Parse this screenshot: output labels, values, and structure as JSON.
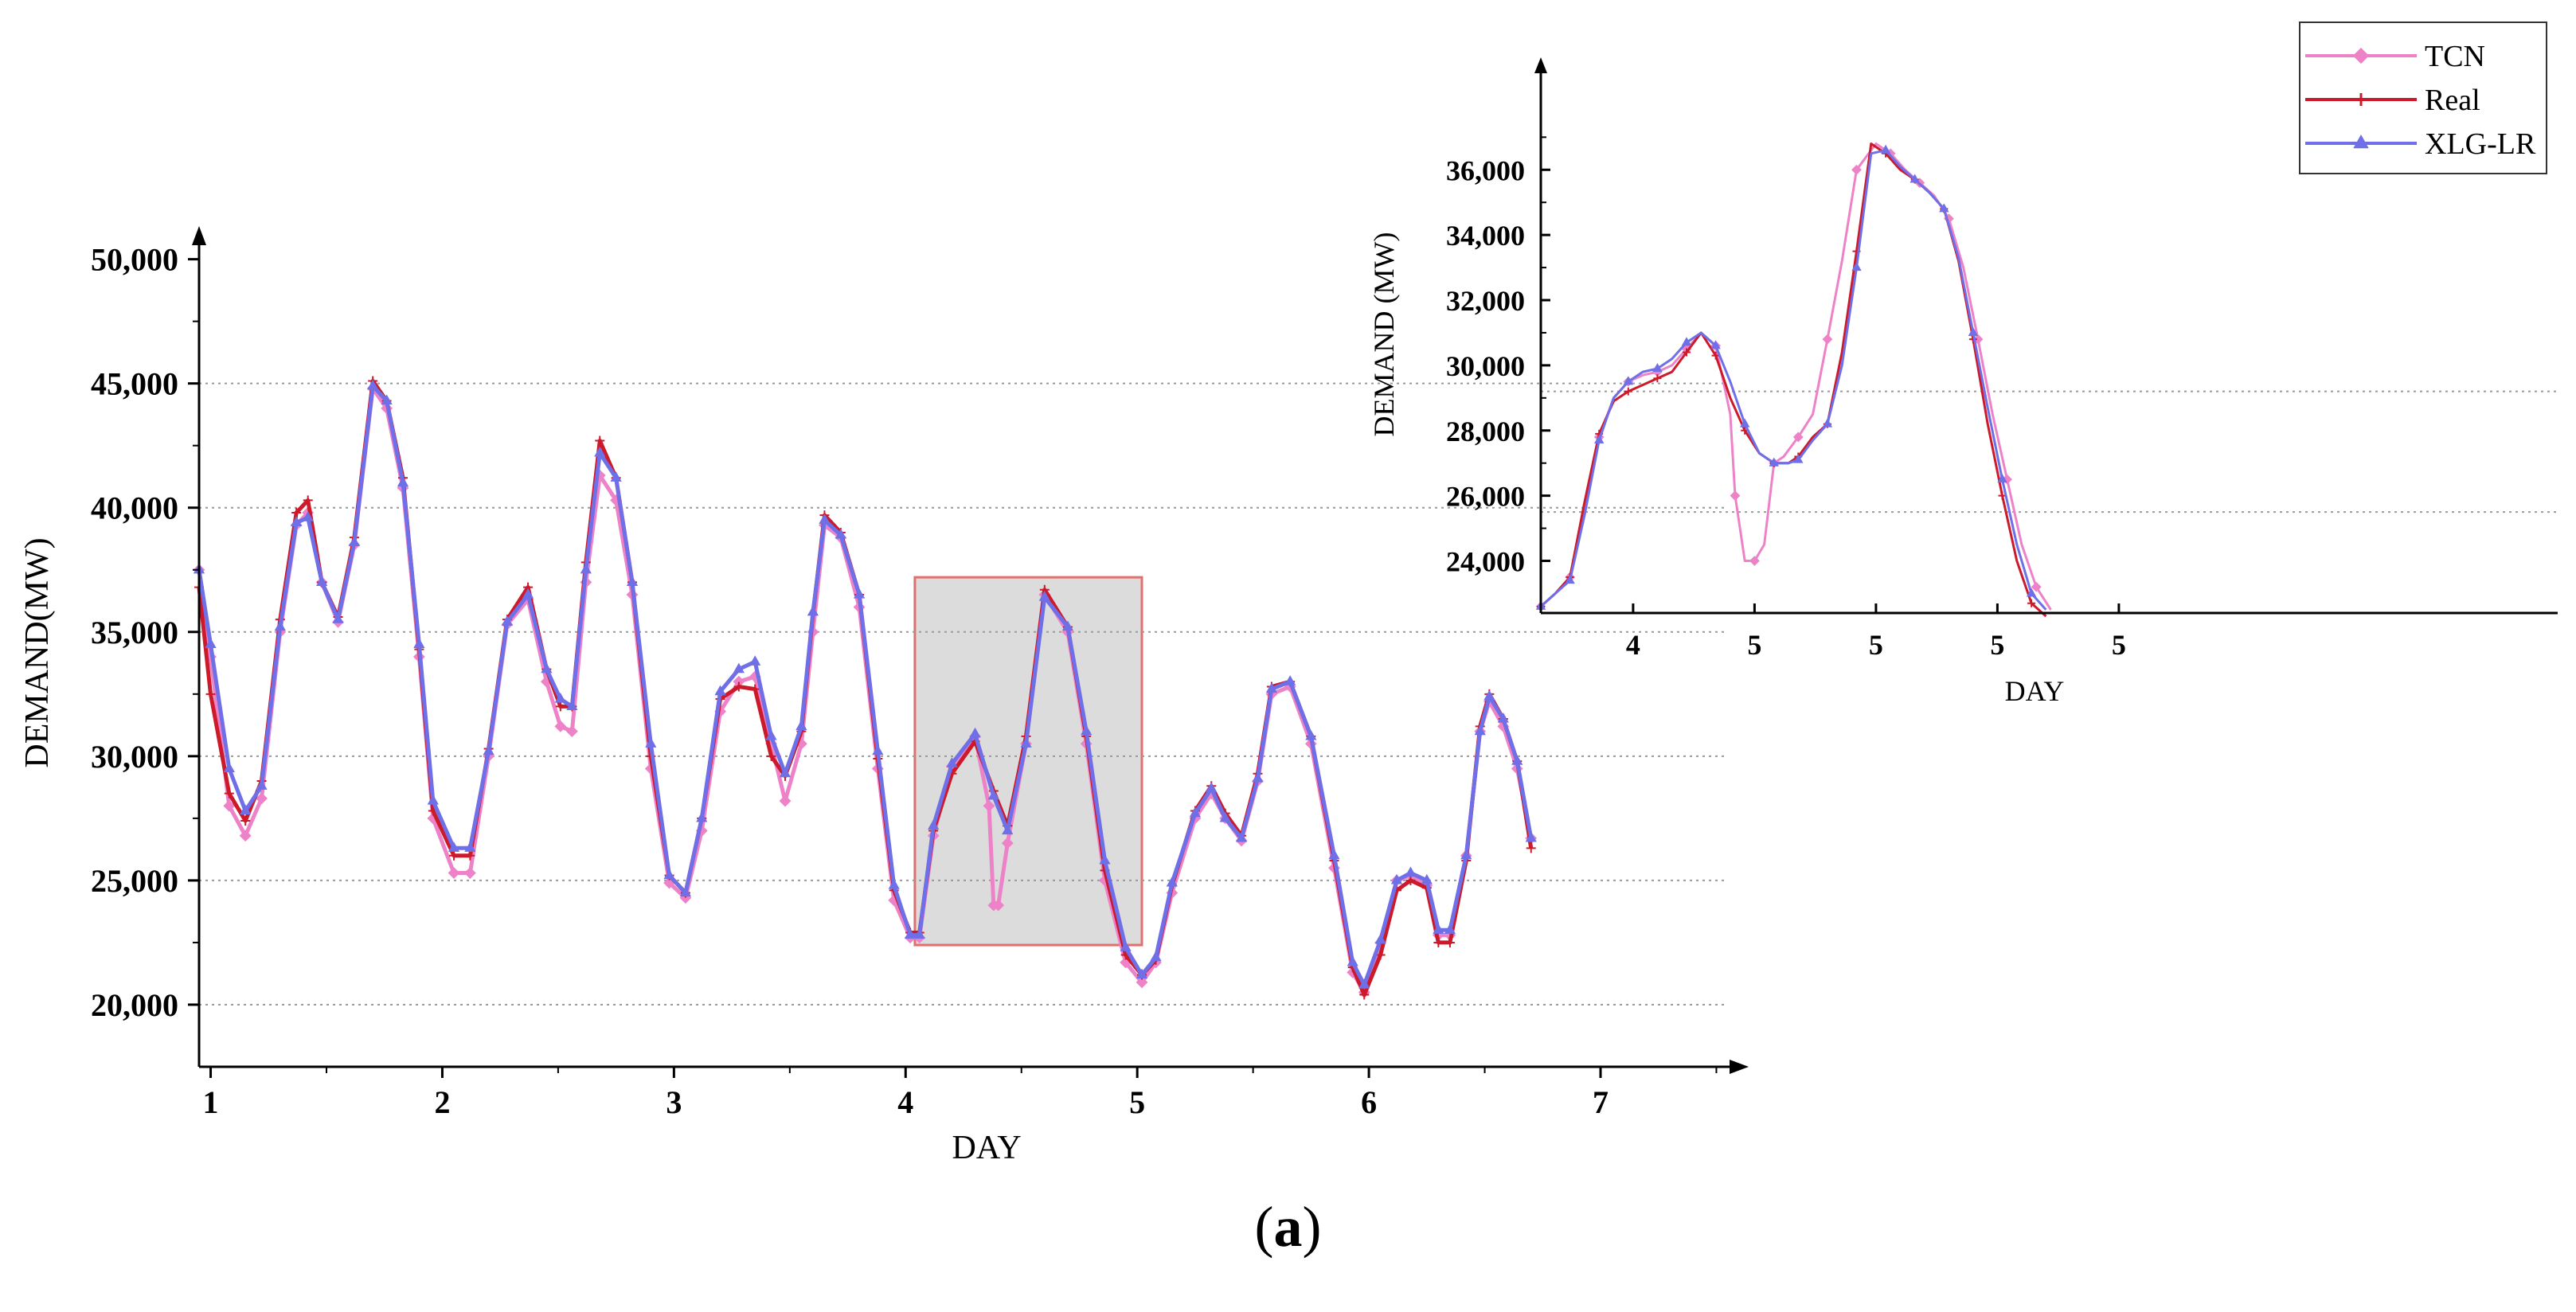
{
  "caption": {
    "open": "(",
    "letter": "a",
    "close": ")"
  },
  "colors": {
    "tcn": "#ee82c8",
    "real": "#cc1a2a",
    "xlg": "#6f6fe8",
    "grid": "#9a9a9a",
    "highlight": "#dcdcdc",
    "highlight_border": "#e07070"
  },
  "chart_data": [
    {
      "type": "line",
      "id": "main",
      "title": "",
      "xlabel": "DAY",
      "ylabel": "DEMAND(MW)",
      "xlim": [
        0.95,
        7.55
      ],
      "ylim": [
        17500,
        50500
      ],
      "x_ticks": [
        1,
        2,
        3,
        4,
        5,
        6,
        7
      ],
      "x_tick_labels": [
        "1",
        "2",
        "3",
        "4",
        "5",
        "6",
        "7"
      ],
      "y_ticks": [
        20000,
        25000,
        30000,
        35000,
        40000,
        45000,
        50000
      ],
      "y_tick_labels": [
        "20,000",
        "25,000",
        "30,000",
        "35,000",
        "40,000",
        "45,000",
        "50,000"
      ],
      "grid_y": [
        20000,
        25000,
        30000,
        35000,
        40000,
        45000
      ],
      "highlight_box": {
        "x": [
          4.04,
          5.02
        ],
        "y": [
          22400,
          37200
        ]
      },
      "series": [
        {
          "name": "TCN",
          "key": "tcn",
          "x": [
            0.95,
            1.0,
            1.08,
            1.15,
            1.22,
            1.3,
            1.37,
            1.42,
            1.48,
            1.55,
            1.62,
            1.7,
            1.76,
            1.83,
            1.9,
            1.96,
            2.05,
            2.12,
            2.2,
            2.28,
            2.37,
            2.45,
            2.51,
            2.56,
            2.62,
            2.68,
            2.75,
            2.82,
            2.9,
            2.98,
            3.05,
            3.12,
            3.2,
            3.28,
            3.35,
            3.42,
            3.48,
            3.55,
            3.6,
            3.65,
            3.72,
            3.8,
            3.88,
            3.95,
            4.02,
            4.06,
            4.12,
            4.2,
            4.3,
            4.36,
            4.38,
            4.4,
            4.44,
            4.52,
            4.6,
            4.7,
            4.78,
            4.86,
            4.95,
            5.02,
            5.08,
            5.15,
            5.25,
            5.32,
            5.38,
            5.45,
            5.52,
            5.58,
            5.66,
            5.75,
            5.85,
            5.93,
            5.98,
            6.05,
            6.12,
            6.18,
            6.25,
            6.3,
            6.35,
            6.42,
            6.48,
            6.52,
            6.58,
            6.64,
            6.7
          ],
          "y": [
            37500,
            34000,
            28000,
            26800,
            28300,
            35000,
            39300,
            39800,
            37000,
            35400,
            38500,
            44800,
            44000,
            40800,
            34000,
            27500,
            25300,
            25300,
            30000,
            35300,
            36300,
            33000,
            31200,
            31000,
            37000,
            41300,
            40300,
            36500,
            29500,
            24900,
            24300,
            27000,
            31800,
            33000,
            33200,
            30500,
            28200,
            30500,
            35000,
            39300,
            38800,
            36000,
            29500,
            24200,
            22700,
            22700,
            26800,
            29600,
            30800,
            28000,
            24000,
            24000,
            26500,
            30500,
            36500,
            35000,
            30500,
            25000,
            21700,
            20900,
            21700,
            24500,
            27500,
            28500,
            27500,
            26600,
            29000,
            32500,
            32800,
            30500,
            25500,
            21300,
            20500,
            22500,
            25000,
            25200,
            24800,
            22800,
            22800,
            26000,
            31000,
            32200,
            31200,
            29500,
            26700
          ]
        },
        {
          "name": "Real",
          "key": "real",
          "x": [
            0.95,
            1.0,
            1.08,
            1.15,
            1.22,
            1.3,
            1.37,
            1.42,
            1.48,
            1.55,
            1.62,
            1.7,
            1.76,
            1.83,
            1.9,
            1.96,
            2.05,
            2.12,
            2.2,
            2.28,
            2.37,
            2.45,
            2.51,
            2.56,
            2.62,
            2.68,
            2.75,
            2.82,
            2.9,
            2.98,
            3.05,
            3.12,
            3.2,
            3.28,
            3.35,
            3.42,
            3.48,
            3.55,
            3.6,
            3.65,
            3.72,
            3.8,
            3.88,
            3.95,
            4.02,
            4.06,
            4.12,
            4.2,
            4.3,
            4.38,
            4.44,
            4.52,
            4.6,
            4.7,
            4.78,
            4.86,
            4.95,
            5.02,
            5.08,
            5.15,
            5.25,
            5.32,
            5.38,
            5.45,
            5.52,
            5.58,
            5.66,
            5.75,
            5.85,
            5.93,
            5.98,
            6.05,
            6.12,
            6.18,
            6.25,
            6.3,
            6.35,
            6.42,
            6.48,
            6.52,
            6.58,
            6.64,
            6.7
          ],
          "y": [
            36800,
            32500,
            28500,
            27400,
            29000,
            35500,
            39800,
            40300,
            37000,
            35600,
            38800,
            45100,
            44300,
            41200,
            34300,
            27800,
            26000,
            26000,
            30300,
            35500,
            36800,
            33500,
            32000,
            32000,
            37800,
            42700,
            41200,
            37000,
            30000,
            25200,
            24500,
            27500,
            32300,
            32800,
            32700,
            30000,
            29200,
            31000,
            35700,
            39700,
            39000,
            36500,
            29900,
            24600,
            22900,
            22900,
            27000,
            29300,
            30600,
            28600,
            27200,
            30800,
            36700,
            35200,
            30800,
            25400,
            22000,
            21200,
            21800,
            24800,
            27800,
            28800,
            27700,
            26800,
            29300,
            32800,
            33000,
            30800,
            25800,
            21500,
            20400,
            22000,
            24600,
            25000,
            24700,
            22500,
            22500,
            25800,
            31200,
            32500,
            31500,
            29800,
            26300
          ]
        },
        {
          "name": "XLG-LR",
          "key": "xlg",
          "x": [
            0.95,
            1.0,
            1.08,
            1.15,
            1.22,
            1.3,
            1.37,
            1.42,
            1.48,
            1.55,
            1.62,
            1.7,
            1.76,
            1.83,
            1.9,
            1.96,
            2.05,
            2.12,
            2.2,
            2.28,
            2.37,
            2.45,
            2.51,
            2.56,
            2.62,
            2.68,
            2.75,
            2.82,
            2.9,
            2.98,
            3.05,
            3.12,
            3.2,
            3.28,
            3.35,
            3.42,
            3.48,
            3.55,
            3.6,
            3.65,
            3.72,
            3.8,
            3.88,
            3.95,
            4.02,
            4.06,
            4.12,
            4.2,
            4.3,
            4.38,
            4.44,
            4.52,
            4.6,
            4.7,
            4.78,
            4.86,
            4.95,
            5.02,
            5.08,
            5.15,
            5.25,
            5.32,
            5.38,
            5.45,
            5.52,
            5.58,
            5.66,
            5.75,
            5.85,
            5.93,
            5.98,
            6.05,
            6.12,
            6.18,
            6.25,
            6.3,
            6.35,
            6.42,
            6.48,
            6.52,
            6.58,
            6.64,
            6.7
          ],
          "y": [
            37500,
            34500,
            29500,
            27800,
            28800,
            35200,
            39400,
            39600,
            37000,
            35500,
            38600,
            44900,
            44300,
            41000,
            34500,
            28200,
            26300,
            26300,
            30200,
            35400,
            36500,
            33500,
            32300,
            32000,
            37500,
            42200,
            41200,
            37000,
            30500,
            25200,
            24500,
            27500,
            32600,
            33500,
            33800,
            30800,
            29300,
            31200,
            35800,
            39500,
            38900,
            36500,
            30200,
            24800,
            22800,
            22800,
            27200,
            29700,
            30900,
            28400,
            27000,
            30500,
            36400,
            35200,
            31000,
            25800,
            22300,
            21200,
            21900,
            24900,
            27700,
            28700,
            27500,
            26700,
            29100,
            32700,
            33000,
            30800,
            26000,
            21700,
            20800,
            22600,
            25000,
            25300,
            25000,
            23000,
            23000,
            26000,
            31000,
            32400,
            31500,
            29800,
            26700
          ]
        }
      ]
    },
    {
      "type": "line",
      "id": "inset",
      "title": "",
      "xlabel": "DAY",
      "ylabel": "DEMAND (MW)",
      "xlim": [
        0,
        1
      ],
      "ylim": [
        22400,
        39500
      ],
      "x_ticks": [
        0.19,
        0.44,
        0.69,
        0.94,
        1.19
      ],
      "x_tick_labels": [
        "4",
        "5",
        "5",
        "5",
        "5"
      ],
      "y_ticks": [
        24000,
        26000,
        28000,
        30000,
        32000,
        34000,
        36000
      ],
      "y_tick_labels": [
        "24,000",
        "26,000",
        "28,000",
        "30,000",
        "32,000",
        "34,000",
        "36,000"
      ],
      "grid_y": [
        25500,
        29200
      ],
      "legend": {
        "position": "top-right",
        "entries": [
          "TCN",
          "Real",
          "XLG-LR"
        ]
      },
      "series": [
        {
          "name": "TCN",
          "key": "tcn",
          "x": [
            0.0,
            0.03,
            0.06,
            0.09,
            0.12,
            0.15,
            0.18,
            0.21,
            0.24,
            0.27,
            0.3,
            0.33,
            0.36,
            0.39,
            0.4,
            0.42,
            0.44,
            0.46,
            0.48,
            0.5,
            0.53,
            0.56,
            0.59,
            0.62,
            0.65,
            0.69,
            0.72,
            0.75,
            0.78,
            0.81,
            0.84,
            0.87,
            0.9,
            0.93,
            0.96,
            0.99,
            1.02,
            1.05
          ],
          "y": [
            22600,
            23000,
            23500,
            25500,
            27800,
            29000,
            29500,
            29700,
            29800,
            30000,
            30500,
            31000,
            30600,
            28500,
            26000,
            24000,
            24000,
            24500,
            27000,
            27200,
            27800,
            28500,
            30800,
            33200,
            36000,
            36800,
            36500,
            36000,
            35600,
            35200,
            34500,
            33000,
            30800,
            28500,
            26500,
            24500,
            23200,
            22500
          ]
        },
        {
          "name": "Real",
          "key": "real",
          "x": [
            0.0,
            0.03,
            0.06,
            0.09,
            0.12,
            0.15,
            0.18,
            0.21,
            0.24,
            0.27,
            0.3,
            0.33,
            0.36,
            0.39,
            0.42,
            0.45,
            0.48,
            0.51,
            0.53,
            0.56,
            0.59,
            0.62,
            0.65,
            0.68,
            0.71,
            0.74,
            0.77,
            0.8,
            0.83,
            0.86,
            0.89,
            0.92,
            0.95,
            0.98,
            1.01,
            1.04
          ],
          "y": [
            22600,
            23000,
            23500,
            25800,
            27900,
            28900,
            29200,
            29400,
            29600,
            29800,
            30400,
            31000,
            30300,
            29000,
            28000,
            27300,
            27000,
            27000,
            27200,
            27800,
            28200,
            30400,
            33500,
            36800,
            36500,
            36000,
            35700,
            35300,
            34800,
            33200,
            30800,
            28200,
            26000,
            24000,
            22700,
            22300
          ]
        },
        {
          "name": "XLG-LR",
          "key": "xlg",
          "x": [
            0.0,
            0.03,
            0.06,
            0.09,
            0.12,
            0.15,
            0.18,
            0.21,
            0.24,
            0.27,
            0.3,
            0.33,
            0.36,
            0.39,
            0.42,
            0.45,
            0.48,
            0.51,
            0.53,
            0.56,
            0.59,
            0.62,
            0.65,
            0.68,
            0.71,
            0.74,
            0.77,
            0.8,
            0.83,
            0.86,
            0.89,
            0.92,
            0.95,
            0.98,
            1.01,
            1.04
          ],
          "y": [
            22600,
            23000,
            23400,
            25400,
            27700,
            29000,
            29500,
            29800,
            29900,
            30200,
            30700,
            31000,
            30600,
            29500,
            28200,
            27300,
            27000,
            27000,
            27100,
            27700,
            28200,
            30000,
            33000,
            36500,
            36600,
            36100,
            35700,
            35300,
            34800,
            33300,
            31000,
            28700,
            26500,
            24500,
            23000,
            22500
          ]
        }
      ]
    }
  ]
}
